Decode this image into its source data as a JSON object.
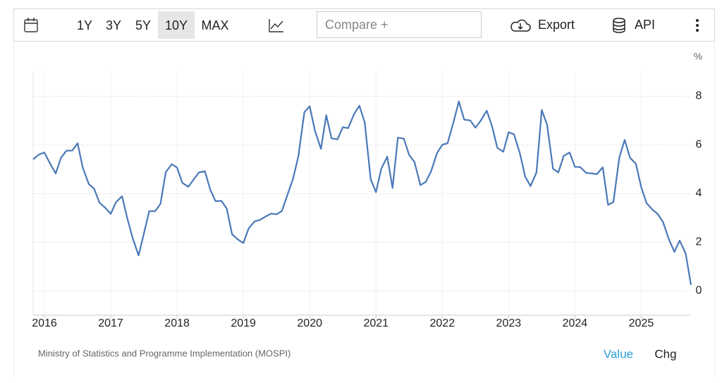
{
  "toolbar": {
    "ranges": [
      "1Y",
      "3Y",
      "5Y",
      "10Y",
      "MAX"
    ],
    "compare": "Compare +",
    "export": "Export",
    "api": "API"
  },
  "chart_data": {
    "type": "line",
    "y_label": "%",
    "color": "#4a78b8",
    "x": [
      2015.83,
      2015.92,
      2016,
      2016.08,
      2016.17,
      2016.25,
      2016.33,
      2016.42,
      2016.5,
      2016.58,
      2016.67,
      2016.75,
      2016.83,
      2016.92,
      2017,
      2017.08,
      2017.17,
      2017.25,
      2017.33,
      2017.42,
      2017.5,
      2017.58,
      2017.67,
      2017.75,
      2017.83,
      2017.92,
      2018,
      2018.08,
      2018.17,
      2018.25,
      2018.33,
      2018.42,
      2018.5,
      2018.58,
      2018.67,
      2018.75,
      2018.83,
      2018.92,
      2019,
      2019.08,
      2019.17,
      2019.25,
      2019.33,
      2019.42,
      2019.5,
      2019.58,
      2019.67,
      2019.75,
      2019.83,
      2019.92,
      2020,
      2020.08,
      2020.17,
      2020.25,
      2020.33,
      2020.42,
      2020.5,
      2020.58,
      2020.67,
      2020.75,
      2020.83,
      2020.92,
      2021,
      2021.08,
      2021.17,
      2021.25,
      2021.33,
      2021.42,
      2021.5,
      2021.58,
      2021.67,
      2021.75,
      2021.83,
      2021.92,
      2022,
      2022.08,
      2022.17,
      2022.25,
      2022.33,
      2022.42,
      2022.5,
      2022.58,
      2022.67,
      2022.75,
      2022.83,
      2022.92,
      2023,
      2023.08,
      2023.17,
      2023.25,
      2023.33,
      2023.42,
      2023.5,
      2023.58,
      2023.67,
      2023.75,
      2023.83,
      2023.92,
      2024,
      2024.08,
      2024.17,
      2024.25,
      2024.33,
      2024.42,
      2024.5,
      2024.58,
      2024.67,
      2024.75,
      2024.83,
      2024.92,
      2025,
      2025.08,
      2025.17,
      2025.25,
      2025.33,
      2025.42,
      2025.5,
      2025.58,
      2025.67,
      2025.75
    ],
    "values": [
      5.41,
      5.61,
      5.69,
      5.26,
      4.83,
      5.47,
      5.76,
      5.77,
      6.07,
      5.05,
      4.39,
      4.2,
      3.63,
      3.41,
      3.17,
      3.65,
      3.89,
      2.99,
      2.18,
      1.46,
      2.36,
      3.28,
      3.28,
      3.58,
      4.88,
      5.21,
      5.07,
      4.44,
      4.28,
      4.58,
      4.87,
      4.92,
      4.17,
      3.69,
      3.7,
      3.38,
      2.33,
      2.11,
      1.97,
      2.57,
      2.86,
      2.92,
      3.05,
      3.18,
      3.15,
      3.28,
      3.99,
      4.62,
      5.54,
      7.35,
      7.59,
      6.58,
      5.84,
      7.22,
      6.27,
      6.23,
      6.73,
      6.69,
      7.27,
      7.61,
      6.93,
      4.59,
      4.06,
      5.03,
      5.52,
      4.23,
      6.3,
      6.26,
      5.59,
      5.3,
      4.35,
      4.48,
      4.91,
      5.66,
      6.01,
      6.07,
      6.95,
      7.79,
      7.04,
      7.01,
      6.71,
      7,
      7.41,
      6.77,
      5.88,
      5.72,
      6.52,
      6.44,
      5.66,
      4.7,
      4.31,
      4.87,
      7.44,
      6.83,
      5.02,
      4.87,
      5.55,
      5.69,
      5.1,
      5.09,
      4.85,
      4.83,
      4.8,
      5.08,
      3.54,
      3.65,
      5.49,
      6.21,
      5.48,
      5.22,
      4.26,
      3.61,
      3.34,
      3.16,
      2.82,
      2.1,
      1.61,
      2.07,
      1.54,
      0.25
    ],
    "xlim": [
      2015.83,
      2025.75
    ],
    "xticks": [
      2016,
      2017,
      2018,
      2019,
      2020,
      2021,
      2022,
      2023,
      2024,
      2025
    ],
    "ylim": [
      -1,
      9
    ],
    "yticks": [
      0,
      2,
      4,
      6,
      8
    ],
    "grid": true
  },
  "footer": {
    "source": "Ministry of Statistics and Programme Implementation (MOSPI)",
    "tabs": [
      "Value",
      "Chg"
    ]
  }
}
